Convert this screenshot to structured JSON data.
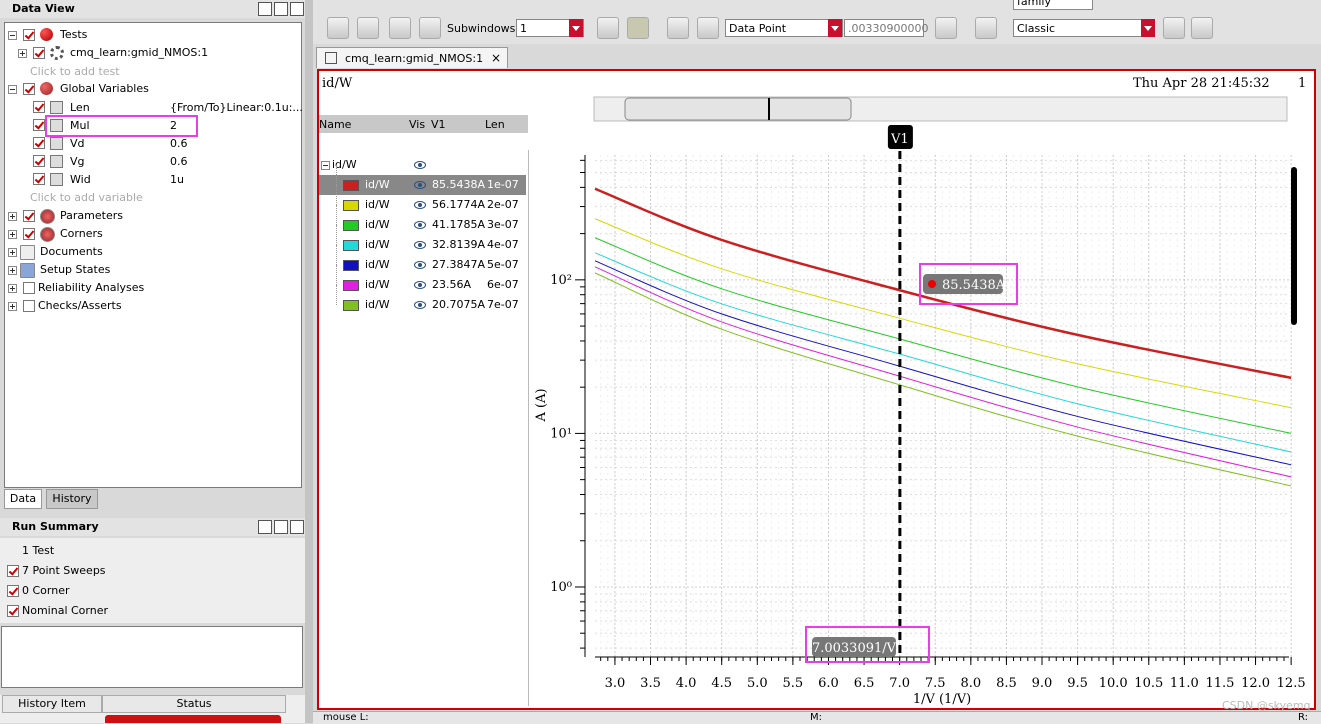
{
  "data_view": {
    "title": "Data View",
    "tree": {
      "tests": "Tests",
      "test_item": "cmq_learn:gmid_NMOS:1",
      "add_test": "Click to add test",
      "global_variables": "Global Variables",
      "variables": [
        {
          "name": "Len",
          "value": "{From/To}Linear:0.1u:..."
        },
        {
          "name": "Mul",
          "value": "2"
        },
        {
          "name": "Vd",
          "value": "0.6"
        },
        {
          "name": "Vg",
          "value": "0.6"
        },
        {
          "name": "Wid",
          "value": "1u"
        }
      ],
      "add_variable": "Click to add variable",
      "others": [
        "Parameters",
        "Corners",
        "Documents",
        "Setup States",
        "Reliability Analyses",
        "Checks/Asserts"
      ]
    },
    "tabs": [
      "Data",
      "History"
    ]
  },
  "run_summary": {
    "title": "Run Summary",
    "items": [
      "1 Test",
      "7 Point Sweeps",
      "0 Corner",
      "Nominal Corner"
    ]
  },
  "history_table": {
    "headers": [
      "History Item",
      "Status"
    ]
  },
  "toolbar": {
    "family": "family",
    "subwindows_label": "Subwindows:",
    "subwindows": "1",
    "mode": "Data Point",
    "data_point": ".00330900000",
    "style": "Classic"
  },
  "tab": "cmq_learn:gmid_NMOS:1",
  "plot_header": {
    "title": "id/W",
    "date": "Thu Apr 28 21:45:32",
    "number": "1"
  },
  "legend_table": {
    "headers": [
      "Name",
      "Vis",
      "V1",
      "Len"
    ],
    "group": "id/W"
  },
  "status_bar": {
    "left": "mouse L:",
    "mid": "M:",
    "right": "R:"
  },
  "watermark": "CSDN @skyemq",
  "chart_data": {
    "type": "line",
    "log_y": true,
    "grid": true,
    "xlabel": "1/V (1/V)",
    "ylabel": "A (A)",
    "x": [
      2.72,
      4.5,
      7.0033091,
      9.5,
      12.5
    ],
    "xlim": [
      2.72,
      12.47
    ],
    "xticks": [
      {
        "value": 3,
        "label": "3.0"
      },
      3.5,
      {
        "value": 4,
        "label": "4.0"
      },
      4.5,
      {
        "value": 5,
        "label": "5.0"
      },
      5.5,
      {
        "value": 6,
        "label": "6.0"
      },
      6.5,
      {
        "value": 7,
        "label": "7.0"
      },
      7.5,
      {
        "value": 8,
        "label": "8.0"
      },
      8.5,
      {
        "value": 9,
        "label": "9.0"
      },
      9.5,
      {
        "value": 10,
        "label": "10.0"
      },
      10.5,
      {
        "value": 11,
        "label": "11.0"
      },
      11.5,
      {
        "value": 12,
        "label": "12.0"
      },
      12.5
    ],
    "ylim": [
      0.35,
      650
    ],
    "yticks": [
      {
        "value": 1,
        "label": "10⁰"
      },
      {
        "value": 10,
        "label": "10¹"
      },
      {
        "value": 100,
        "label": "10²"
      }
    ],
    "cursor": {
      "name": "V1",
      "x": 7.0033091,
      "label": "7.0033091/V"
    },
    "series": [
      {
        "name": "id/W",
        "color": "#cc1f1f",
        "len": "1e-07",
        "values": [
          392,
          182,
          85.5438,
          43.8,
          23
        ],
        "value_labels": [
          null,
          null,
          "85.5438A",
          null,
          null
        ]
      },
      {
        "name": "id/W",
        "color": "#d8d800",
        "len": "2e-07",
        "values": [
          250,
          118,
          56.1774,
          28.4,
          14.7
        ],
        "value_labels": [
          null,
          null,
          "56.1774A",
          null,
          null
        ]
      },
      {
        "name": "id/W",
        "color": "#22cc22",
        "len": "3e-07",
        "values": [
          188,
          87.4,
          41.1785,
          20.1,
          10
        ],
        "value_labels": [
          null,
          null,
          "41.1785A",
          null,
          null
        ]
      },
      {
        "name": "id/W",
        "color": "#22d8d8",
        "len": "4e-07",
        "values": [
          150,
          69.8,
          32.8139,
          15.6,
          7.57
        ],
        "value_labels": [
          null,
          null,
          "32.8139A",
          null,
          null
        ]
      },
      {
        "name": "id/W",
        "color": "#1010c0",
        "len": "5e-07",
        "values": [
          133,
          60,
          27.3847,
          12.9,
          6.24
        ],
        "value_labels": [
          null,
          null,
          "27.3847A",
          null,
          null
        ]
      },
      {
        "name": "id/W",
        "color": "#e020e0",
        "len": "6e-07",
        "values": [
          121.6,
          53.2,
          23.56,
          11,
          5.21
        ],
        "value_labels": [
          null,
          null,
          "23.56A",
          null,
          null
        ]
      },
      {
        "name": "id/W",
        "color": "#80c020",
        "len": "7e-07",
        "values": [
          111,
          47.7,
          20.7075,
          9.6,
          4.55
        ],
        "value_labels": [
          null,
          null,
          "20.7075A",
          null,
          null
        ]
      }
    ]
  }
}
